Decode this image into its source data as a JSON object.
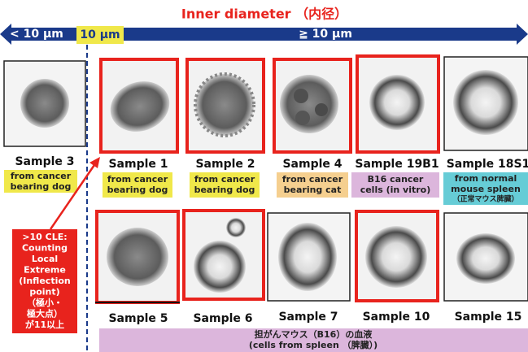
{
  "header": {
    "title": "Inner diameter （内径）",
    "left_label": "< 10 μm",
    "threshold_label": "10 μm",
    "right_label": "≧ 10 μm"
  },
  "row1": [
    {
      "label": "Sample 3",
      "note": [
        "from cancer",
        "bearing dog"
      ]
    },
    {
      "label": "Sample 1",
      "note": [
        "from cancer",
        "bearing dog"
      ]
    },
    {
      "label": "Sample 2",
      "note": [
        "from cancer",
        "bearing dog"
      ]
    },
    {
      "label": "Sample 4",
      "note": [
        "from cancer",
        "bearing cat"
      ]
    },
    {
      "label": "Sample 19B1",
      "note": [
        "B16 cancer",
        "cells (in vitro)"
      ]
    },
    {
      "label": "Sample 18S1",
      "note": [
        "from normal",
        "mouse spleen",
        "（正常マウス脾臓）"
      ]
    }
  ],
  "side_note": [
    ">10 CLE:",
    "Counting",
    "Local",
    "Extreme",
    "(Inflection",
    "point)",
    "（極小・",
    "極大点）",
    "が11以上"
  ],
  "row2": [
    {
      "label": "Sample 5"
    },
    {
      "label": "Sample 6"
    },
    {
      "label": "Sample 7"
    },
    {
      "label": "Sample 10"
    },
    {
      "label": "Sample 15"
    }
  ],
  "bottom_note": [
    "担がんマウス（B16）の血液",
    "(cells from spleen （脾臓）)"
  ]
}
